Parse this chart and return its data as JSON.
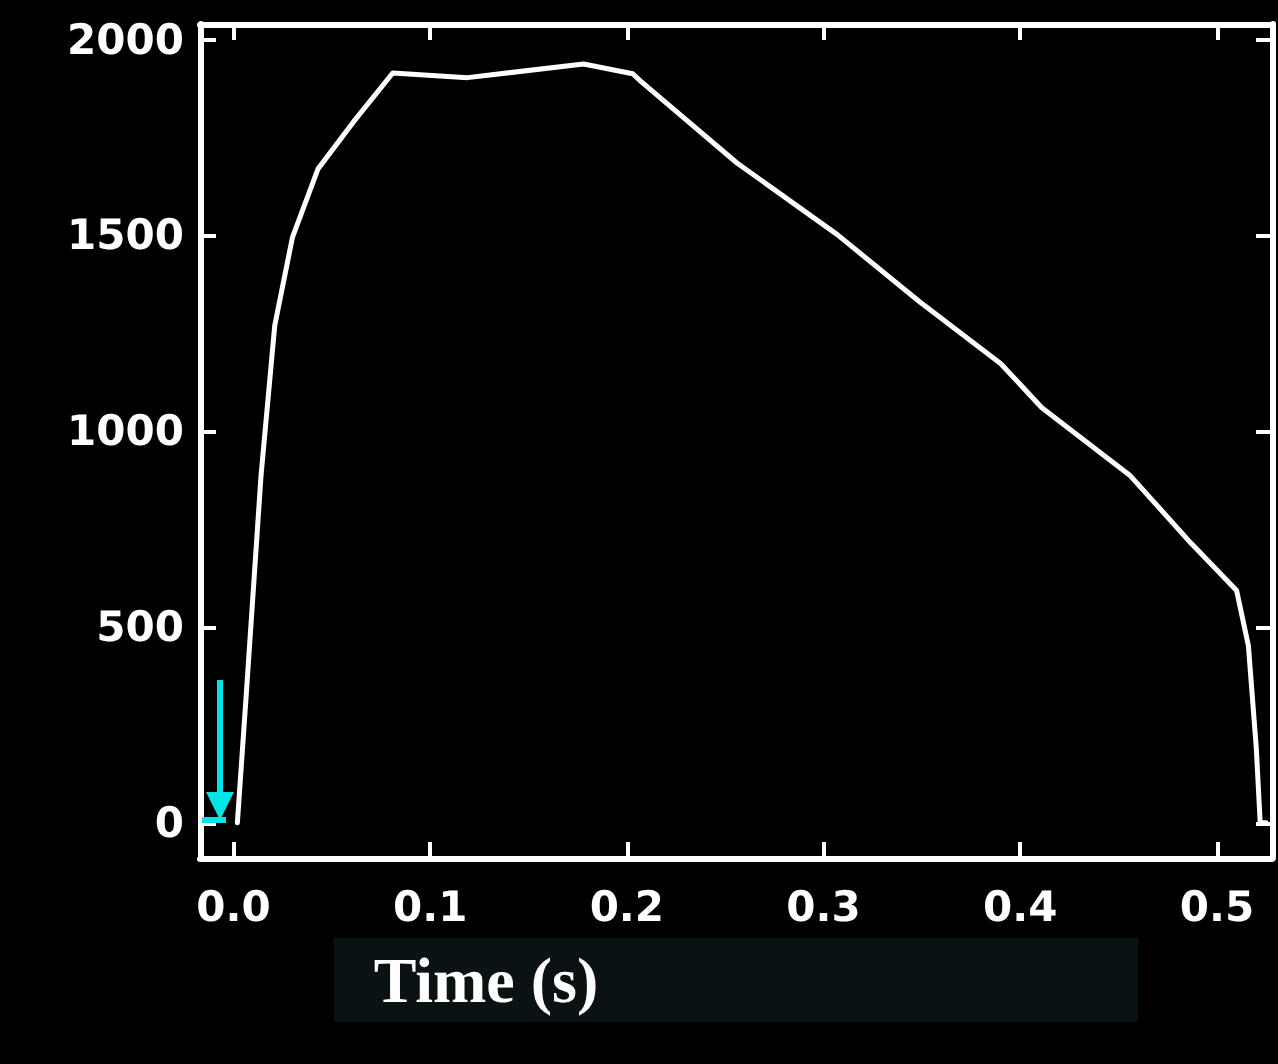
{
  "chart_data": {
    "type": "line",
    "xlabel": "Time (s)",
    "x": [
      0.002,
      0.007,
      0.014,
      0.021,
      0.03,
      0.043,
      0.061,
      0.081,
      0.119,
      0.178,
      0.203,
      0.207,
      0.256,
      0.307,
      0.349,
      0.39,
      0.411,
      0.456,
      0.487,
      0.51,
      0.516,
      0.52,
      0.522,
      0.525
    ],
    "series": [
      {
        "color": "#ffffff",
        "values": [
          0,
          363,
          885,
          1270,
          1495,
          1670,
          1790,
          1915,
          1903,
          1938,
          1913,
          1894,
          1685,
          1502,
          1330,
          1173,
          1060,
          886,
          713,
          593,
          452,
          192,
          0,
          0
        ]
      }
    ],
    "xlim": [
      -0.017,
      0.528
    ],
    "xticks": [
      {
        "value": 0,
        "label": "0.0"
      },
      0.1,
      0.2,
      0.3,
      0.4,
      0.5
    ],
    "ylim": [
      -90,
      2040
    ],
    "yticks": [
      0,
      500,
      1000,
      1500,
      2000
    ],
    "marker": "none",
    "line_style": "solid"
  }
}
